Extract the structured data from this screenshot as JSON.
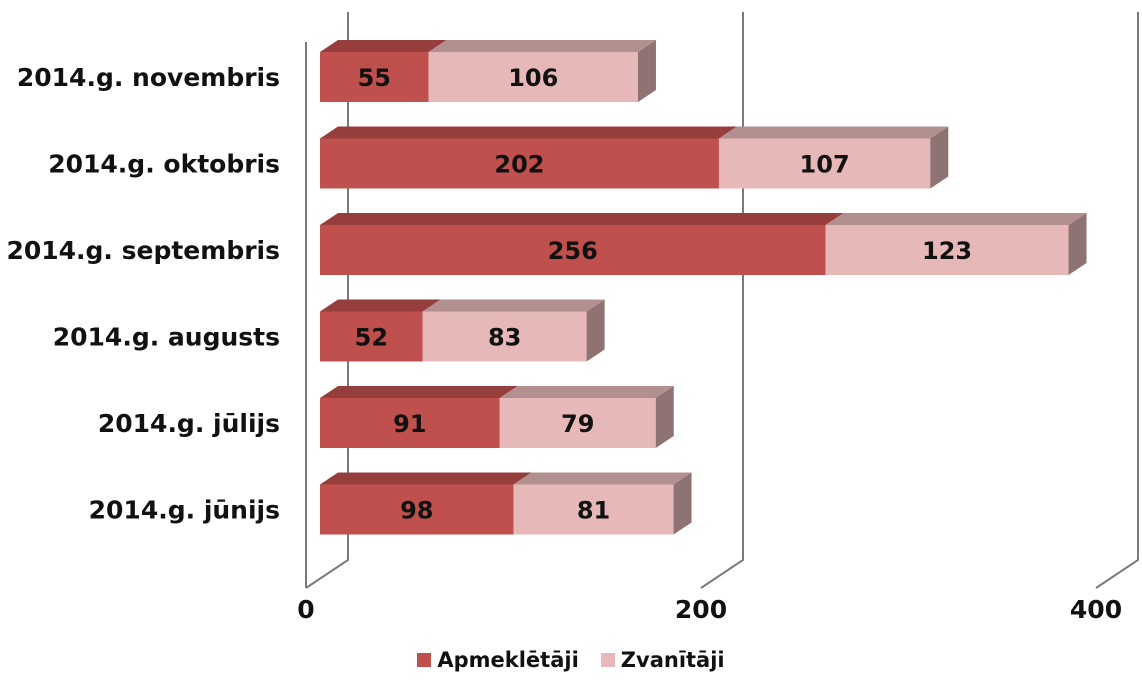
{
  "chart_data": {
    "type": "bar",
    "orientation": "horizontal",
    "stacked": true,
    "three_d": true,
    "categories": [
      "2014.g. novembris",
      "2014.g. oktobris",
      "2014.g. septembris",
      "2014.g. augusts",
      "2014.g. jūlijs",
      "2014.g. jūnijs"
    ],
    "series": [
      {
        "name": "Apmeklētāji",
        "color": "#c0504d",
        "values": [
          55,
          202,
          256,
          52,
          91,
          98
        ]
      },
      {
        "name": "Zvanītāji",
        "color": "#e6b9b8",
        "values": [
          106,
          107,
          123,
          83,
          79,
          81
        ]
      }
    ],
    "xlim": [
      0,
      400
    ],
    "xticks": [
      0,
      200,
      400
    ],
    "tick_labels": [
      "0",
      "200",
      "400"
    ],
    "grid": true,
    "legend_position": "bottom"
  }
}
